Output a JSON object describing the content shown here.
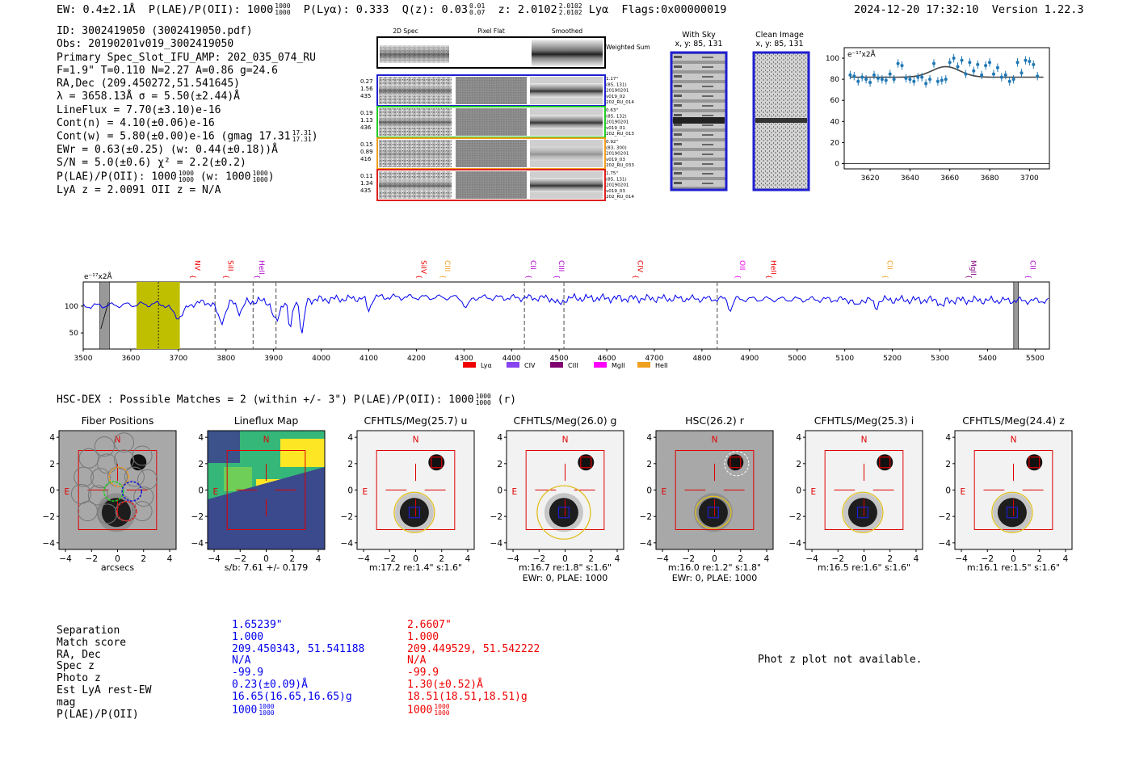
{
  "header": {
    "ew": "EW: 0.4±2.1Å",
    "plae_label": "P(LAE)/P(OII): 1000",
    "plae_hi": "1000",
    "plae_lo": "1000",
    "plya": "P(Lyα): 0.333",
    "qz_label": "Q(z): 0.03",
    "qz_hi": "0.01",
    "qz_lo": "0.07",
    "z_label": "z: 2.0102",
    "z_hi": "2.0102",
    "z_lo": "2.0102",
    "z_line": "Lyα",
    "flags": "Flags:0x00000019",
    "timestamp": "2024-12-20 17:32:10",
    "version": "Version 1.22.3"
  },
  "info": {
    "id": "ID: 3002419050 (3002419050.pdf)",
    "obs": "Obs: 20190201v019_3002419050",
    "primary": "Primary Spec_Slot_IFU_AMP: 202_035_074_RU",
    "fwhm": "F=1.9\"  T=0.110  N=2.27  A=0.86  g=24.6",
    "radec": "RA,Dec (209.450272,51.541645)",
    "lambda": "λ = 3658.13Å  σ = 5.50(±2.44)Å",
    "lineflux": "LineFlux = 7.70(±3.10)e-16",
    "contn": "Cont(n) = 4.10(±0.06)e-16",
    "contw": "Cont(w) = 5.80(±0.00)e-16 (gmag 17.31",
    "contw_hi": "17.31",
    "contw_lo": "17.31",
    "contw_end": ")",
    "ewr": "EWr = 0.63(±0.25) (w: 0.44(±0.18))Å",
    "sn": "S/N = 5.0(±0.6)  χ² = 2.2(±0.2)",
    "plae": "P(LAE)/P(OII): 1000",
    "plae_hi": "1000",
    "plae_lo": "1000",
    "plae_w": "(w: 1000",
    "plae_w_hi": "1000",
    "plae_w_lo": "1000",
    "plae_w_end": ")",
    "lyaz": "LyA z = 2.0091  OII z = N/A"
  },
  "cutouts": {
    "col_labels": [
      "2D Spec",
      "Pixel Flat",
      "Smoothed"
    ],
    "weighted_sum": "Weighted Sum",
    "rows": [
      {
        "left": [
          "0.27",
          "1.56",
          "435"
        ],
        "right": [
          "1.17\"",
          "(85, 131)",
          "20190201",
          "v019_02",
          "202_RU_014"
        ],
        "color": "#1f1fd0"
      },
      {
        "left": [
          "0.19",
          "1.13",
          "436"
        ],
        "right": [
          "0.63\"",
          "(85, 132)",
          "20190201",
          "v019_01",
          "202_RU_013"
        ],
        "color": "#22cc22"
      },
      {
        "left": [
          "0.15",
          "0.89",
          "416"
        ],
        "right": [
          "0.92\"",
          "(83, 300)",
          "20190201",
          "v019_03",
          "202_RU_033"
        ],
        "color": "#f0a020"
      },
      {
        "left": [
          "0.11",
          "1.34",
          "435"
        ],
        "right": [
          "1.75\"",
          "(85, 131)",
          "20190201",
          "v019_03",
          "202_RU_014"
        ],
        "color": "#e02020"
      }
    ],
    "with_sky": "With Sky",
    "with_sky_xy": "x, y: 85, 131",
    "clean": "Clean Image",
    "clean_xy": "x, y: 85, 131"
  },
  "zoom_chart": {
    "unit": "e⁻¹⁷x2Å",
    "yticks": [
      "100",
      "80",
      "60",
      "40",
      "20",
      "0"
    ],
    "xticks": [
      "3620",
      "3640",
      "3660",
      "3680",
      "3700"
    ]
  },
  "chart_data": [
    {
      "type": "scatter",
      "title": "",
      "ylabel": "e-17 x2Å",
      "xlim": [
        3607,
        3710
      ],
      "ylim": [
        -5,
        110
      ],
      "x": [
        3610,
        3612,
        3614,
        3616,
        3618,
        3620,
        3622,
        3624,
        3626,
        3628,
        3630,
        3632,
        3634,
        3636,
        3638,
        3640,
        3642,
        3644,
        3646,
        3648,
        3650,
        3652,
        3654,
        3656,
        3658,
        3660,
        3662,
        3664,
        3666,
        3668,
        3670,
        3672,
        3674,
        3676,
        3678,
        3680,
        3682,
        3684,
        3686,
        3688,
        3690,
        3692,
        3694,
        3696,
        3698,
        3700,
        3702,
        3704
      ],
      "y": [
        84,
        83,
        78,
        82,
        80,
        77,
        84,
        81,
        80,
        79,
        85,
        80,
        95,
        93,
        81,
        80,
        78,
        82,
        82,
        76,
        80,
        95,
        78,
        79,
        80,
        96,
        100,
        92,
        98,
        85,
        96,
        88,
        94,
        84,
        93,
        96,
        85,
        91,
        82,
        84,
        78,
        80,
        96,
        86,
        98,
        97,
        94,
        83
      ],
      "model_baseline": 82,
      "model_peak": 92,
      "model_center": 3658
    },
    {
      "type": "line",
      "xlim": [
        3500,
        5530
      ],
      "yticks": [
        100,
        50
      ],
      "xticks": [
        3500,
        3600,
        3700,
        3800,
        3900,
        4000,
        4100,
        4200,
        4300,
        4400,
        4500,
        4600,
        4700,
        4800,
        4900,
        5000,
        5100,
        5200,
        5300,
        5400,
        5500
      ],
      "unit": "e⁻¹⁷x2Å",
      "line_labels": [
        {
          "name": "NV",
          "x": 3730,
          "color": "#ee0000"
        },
        {
          "name": "SiII",
          "x": 3800,
          "color": "#ee0000"
        },
        {
          "name": "HeII",
          "x": 3865,
          "color": "#b000d0"
        },
        {
          "name": "SiIV",
          "x": 4205,
          "color": "#ee0000"
        },
        {
          "name": "CIII",
          "x": 4255,
          "color": "#f0a020"
        },
        {
          "name": "CII",
          "x": 4435,
          "color": "#b000d0"
        },
        {
          "name": "CIII",
          "x": 4495,
          "color": "#b000d0"
        },
        {
          "name": "CIV",
          "x": 4660,
          "color": "#ee0000"
        },
        {
          "name": "OII",
          "x": 4875,
          "color": "#ee00ee"
        },
        {
          "name": "HeII",
          "x": 4940,
          "color": "#ee0000"
        },
        {
          "name": "CII",
          "x": 5185,
          "color": "#f0a020"
        },
        {
          "name": "MgII",
          "x": 5360,
          "color": "#800080"
        },
        {
          "name": "CII",
          "x": 5485,
          "color": "#b000d0"
        }
      ],
      "legend": [
        {
          "name": "Lyα",
          "color": "#ee0000"
        },
        {
          "name": "CIV",
          "color": "#8844ee"
        },
        {
          "name": "CIII",
          "color": "#800070"
        },
        {
          "name": "MgII",
          "color": "#ff00ff"
        },
        {
          "name": "HeII",
          "color": "#f0a020"
        }
      ]
    }
  ],
  "matches": {
    "title": "HSC-DEX : Possible Matches = 2 (within +/- 3\")  P(LAE)/P(OII): 1000",
    "title_hi": "1000",
    "title_lo": "1000",
    "title_end": "(r)"
  },
  "panels": [
    {
      "title": "Fiber Positions",
      "caption": "arcsecs",
      "caption2": ""
    },
    {
      "title": "Lineflux Map",
      "caption": "s/b: 7.61 +/- 0.179",
      "caption2": ""
    },
    {
      "title": "CFHTLS/Meg(25.7) u",
      "caption": "m:17.2  re:1.4\"  s:1.6\"",
      "caption2": ""
    },
    {
      "title": "CFHTLS/Meg(26.0) g",
      "caption": "m:16.7  re:1.8\"  s:1.6\"",
      "caption2": "EWr: 0, PLAE: 1000"
    },
    {
      "title": "HSC(26.2) r",
      "caption": "m:16.0  re:1.2\"  s:1.8\"",
      "caption2": "EWr: 0, PLAE: 1000"
    },
    {
      "title": "CFHTLS/Meg(25.3) i",
      "caption": "m:16.5  re:1.6\"  s:1.6\"",
      "caption2": ""
    },
    {
      "title": "CFHTLS/Meg(24.4) z",
      "caption": "m:16.1  re:1.5\"  s:1.6\"",
      "caption2": ""
    }
  ],
  "panel_ticks": [
    "4",
    "2",
    "0",
    "−2",
    "−4"
  ],
  "panel_xticks": [
    "−4",
    "−2",
    "0",
    "2",
    "4"
  ],
  "compass_n": "N",
  "compass_e": "E",
  "table": {
    "labels": [
      "Separation",
      "Match score",
      "RA, Dec",
      "Spec z",
      "Photo z",
      "Est LyA rest-EW",
      "mag",
      "P(LAE)/P(OII)"
    ],
    "blue": [
      "1.65239\"",
      "1.000",
      "209.450343, 51.541188",
      "N/A",
      "-99.9",
      "0.23(±0.09)Å",
      "16.65(16.65,16.65)g",
      "1000"
    ],
    "blue_plae_hi": "1000",
    "blue_plae_lo": "1000",
    "red": [
      "2.6607\"",
      "1.000",
      "209.449529, 51.542222",
      "N/A",
      "-99.9",
      "1.30(±0.52)Å",
      "18.51(18.51,18.51)g",
      "1000"
    ],
    "red_plae_hi": "1000",
    "red_plae_lo": "1000",
    "photz_note": "Phot z plot not available."
  }
}
